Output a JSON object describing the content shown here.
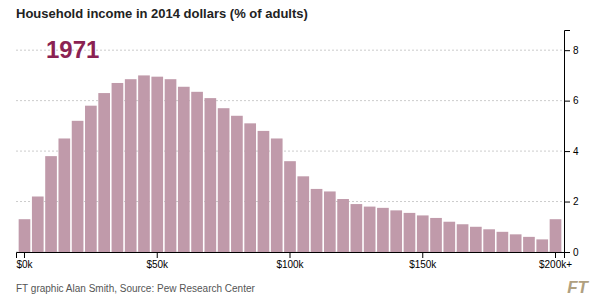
{
  "chart_data": {
    "type": "bar",
    "title": "Household income in 2014 dollars (% of adults)",
    "annotations": [
      "1971",
      "FT graphic Alan Smith, Source: Pew Research Center",
      "FT"
    ],
    "categories": [
      "$0k",
      null,
      null,
      null,
      null,
      null,
      null,
      null,
      null,
      null,
      "$50k",
      null,
      null,
      null,
      null,
      null,
      null,
      null,
      null,
      null,
      "$100k",
      null,
      null,
      null,
      null,
      null,
      null,
      null,
      null,
      null,
      "$150k",
      null,
      null,
      null,
      null,
      null,
      null,
      null,
      null,
      null,
      "$200k+"
    ],
    "values": [
      1.3,
      2.2,
      3.8,
      4.5,
      5.2,
      5.8,
      6.3,
      6.7,
      6.85,
      7.0,
      6.95,
      6.85,
      6.55,
      6.35,
      6.1,
      5.7,
      5.4,
      5.1,
      4.8,
      4.5,
      3.6,
      3.0,
      2.5,
      2.4,
      2.1,
      1.9,
      1.8,
      1.75,
      1.65,
      1.55,
      1.45,
      1.35,
      1.2,
      1.1,
      1.0,
      0.9,
      0.8,
      0.7,
      0.6,
      0.5,
      1.3
    ],
    "color": "#c09aaa",
    "ylim": [
      0,
      8.8
    ],
    "yticks": [
      0,
      2,
      4,
      6,
      8
    ],
    "grid": true
  }
}
